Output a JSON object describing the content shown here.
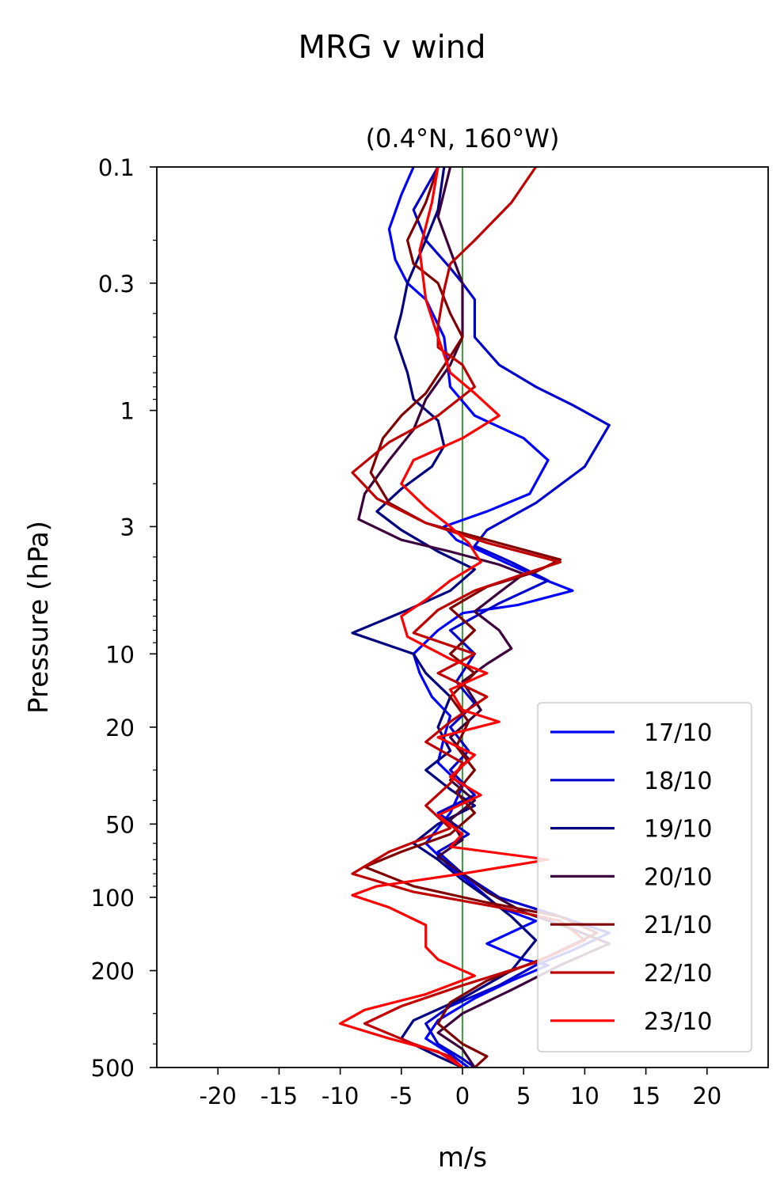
{
  "chart_data": {
    "type": "line",
    "suptitle": "MRG v wind",
    "title": "(0.4°N, 160°W)",
    "xlabel": "m/s",
    "ylabel": "Pressure (hPa)",
    "xlim": [
      -25,
      25
    ],
    "ylim": [
      500,
      0.1
    ],
    "yscale": "log",
    "xticks": [
      -20,
      -15,
      -10,
      -5,
      0,
      5,
      10,
      15,
      20
    ],
    "xtick_labels": [
      "-20",
      "-15",
      "-10",
      "-5",
      "0",
      "5",
      "10",
      "15",
      "20"
    ],
    "yticks": [
      0.1,
      0.3,
      1,
      3,
      10,
      20,
      50,
      100,
      200,
      500
    ],
    "ytick_labels": [
      "0.1",
      "0.3",
      "1",
      "3",
      "10",
      "20",
      "50",
      "100",
      "200",
      "500"
    ],
    "zero_line_color": "#008000",
    "legend_position": "lower right",
    "grid": false,
    "series": [
      {
        "name": "17/10",
        "color": "#0000ff",
        "points": [
          [
            -4,
            0.1
          ],
          [
            -5,
            0.13
          ],
          [
            -6,
            0.18
          ],
          [
            -5.5,
            0.24
          ],
          [
            -4.5,
            0.3
          ],
          [
            -3,
            0.35
          ],
          [
            -1.5,
            0.5
          ],
          [
            -1,
            0.8
          ],
          [
            1,
            1.05
          ],
          [
            5,
            1.3
          ],
          [
            7,
            1.6
          ],
          [
            5.5,
            2.2
          ],
          [
            2,
            2.6
          ],
          [
            -1.5,
            3.0
          ],
          [
            -0.5,
            3.4
          ],
          [
            3,
            4.1
          ],
          [
            6,
            4.8
          ],
          [
            9,
            5.5
          ],
          [
            4.5,
            6.3
          ],
          [
            0,
            6.8
          ],
          [
            -2,
            8
          ],
          [
            -4,
            10
          ],
          [
            -3.5,
            12
          ],
          [
            -2.5,
            15
          ],
          [
            -1,
            18
          ],
          [
            -1.5,
            22
          ],
          [
            -2,
            28
          ],
          [
            0,
            35
          ],
          [
            -1,
            45
          ],
          [
            -3,
            60
          ],
          [
            -1,
            75
          ],
          [
            1,
            90
          ],
          [
            3,
            110
          ],
          [
            6,
            125
          ],
          [
            2,
            155
          ],
          [
            5,
            180
          ],
          [
            7,
            190
          ],
          [
            4,
            220
          ],
          [
            1,
            260
          ],
          [
            -2,
            320
          ],
          [
            -3,
            380
          ],
          [
            -1,
            440
          ],
          [
            0.5,
            500
          ]
        ]
      },
      {
        "name": "18/10",
        "color": "#0000cd",
        "points": [
          [
            -2,
            0.1
          ],
          [
            -4,
            0.15
          ],
          [
            -3,
            0.2
          ],
          [
            -1,
            0.26
          ],
          [
            0,
            0.3
          ],
          [
            1,
            0.35
          ],
          [
            1,
            0.5
          ],
          [
            3,
            0.65
          ],
          [
            6,
            0.8
          ],
          [
            9,
            0.95
          ],
          [
            12,
            1.15
          ],
          [
            10,
            1.7
          ],
          [
            6,
            2.4
          ],
          [
            2,
            3.1
          ],
          [
            1,
            3.6
          ],
          [
            4,
            4.2
          ],
          [
            7,
            5
          ],
          [
            3,
            6.2
          ],
          [
            -1,
            8
          ],
          [
            1,
            10
          ],
          [
            -0.5,
            13
          ],
          [
            1,
            16
          ],
          [
            -1,
            20
          ],
          [
            0.5,
            25
          ],
          [
            -1,
            30
          ],
          [
            1,
            38
          ],
          [
            -2,
            45
          ],
          [
            0.5,
            55
          ],
          [
            -2,
            65
          ],
          [
            0,
            80
          ],
          [
            3,
            100
          ],
          [
            8,
            120
          ],
          [
            12,
            140
          ],
          [
            9,
            165
          ],
          [
            6,
            190
          ],
          [
            3,
            230
          ],
          [
            -1,
            280
          ],
          [
            -3,
            330
          ],
          [
            -2,
            400
          ],
          [
            0,
            460
          ],
          [
            1,
            500
          ]
        ]
      },
      {
        "name": "19/10",
        "color": "#000080",
        "points": [
          [
            -1.5,
            0.1
          ],
          [
            -2,
            0.15
          ],
          [
            -3,
            0.2
          ],
          [
            -4.5,
            0.3
          ],
          [
            -5,
            0.4
          ],
          [
            -5.5,
            0.5
          ],
          [
            -4.5,
            0.7
          ],
          [
            -4,
            0.9
          ],
          [
            -2,
            1.1
          ],
          [
            -1.5,
            1.4
          ],
          [
            -2.5,
            1.7
          ],
          [
            -5,
            2.1
          ],
          [
            -7,
            2.6
          ],
          [
            -5,
            3.1
          ],
          [
            -2,
            3.8
          ],
          [
            1,
            4.5
          ],
          [
            -1,
            5.5
          ],
          [
            -4.5,
            6.6
          ],
          [
            -9,
            8.2
          ],
          [
            -4,
            10
          ],
          [
            -3,
            12
          ],
          [
            -1,
            15
          ],
          [
            -2,
            20
          ],
          [
            -1,
            25
          ],
          [
            -3,
            30
          ],
          [
            -1,
            36
          ],
          [
            1,
            42
          ],
          [
            -2,
            50
          ],
          [
            -4,
            60
          ],
          [
            -2,
            70
          ],
          [
            0,
            85
          ],
          [
            2,
            100
          ],
          [
            4,
            120
          ],
          [
            6,
            150
          ],
          [
            4,
            200
          ],
          [
            0,
            260
          ],
          [
            -4,
            320
          ],
          [
            -5,
            380
          ],
          [
            -2,
            450
          ],
          [
            0,
            500
          ]
        ]
      },
      {
        "name": "20/10",
        "color": "#3c003c",
        "points": [
          [
            -1,
            0.1
          ],
          [
            -2,
            0.16
          ],
          [
            -1,
            0.22
          ],
          [
            0,
            0.3
          ],
          [
            0,
            0.5
          ],
          [
            -1,
            0.65
          ],
          [
            -3,
            0.9
          ],
          [
            -4,
            1.2
          ],
          [
            -6,
            1.6
          ],
          [
            -8,
            2.2
          ],
          [
            -8.5,
            2.8
          ],
          [
            -5,
            3.4
          ],
          [
            -1,
            3.8
          ],
          [
            3,
            4.3
          ],
          [
            5,
            4.7
          ],
          [
            3,
            5.6
          ],
          [
            1,
            6.7
          ],
          [
            3,
            8
          ],
          [
            4,
            9.5
          ],
          [
            2,
            11
          ],
          [
            0,
            13
          ],
          [
            1.5,
            17
          ],
          [
            -1,
            22
          ],
          [
            0.5,
            27
          ],
          [
            -1,
            33
          ],
          [
            1,
            40
          ],
          [
            -1,
            48
          ],
          [
            0,
            58
          ],
          [
            -2,
            68
          ],
          [
            0,
            80
          ],
          [
            2,
            95
          ],
          [
            5,
            115
          ],
          [
            9,
            135
          ],
          [
            12,
            155
          ],
          [
            8,
            190
          ],
          [
            4,
            240
          ],
          [
            0,
            300
          ],
          [
            -2,
            360
          ],
          [
            0,
            420
          ],
          [
            1,
            500
          ]
        ]
      },
      {
        "name": "21/10",
        "color": "#800000",
        "points": [
          [
            -2,
            0.1
          ],
          [
            -3,
            0.14
          ],
          [
            -4.5,
            0.2
          ],
          [
            -4,
            0.25
          ],
          [
            -2,
            0.3
          ],
          [
            -1,
            0.4
          ],
          [
            0,
            0.5
          ],
          [
            -1,
            0.6
          ],
          [
            -3,
            0.85
          ],
          [
            -5,
            1.05
          ],
          [
            -6.5,
            1.3
          ],
          [
            -7.5,
            1.8
          ],
          [
            -6,
            2.4
          ],
          [
            -3,
            2.9
          ],
          [
            2,
            3.4
          ],
          [
            8,
            4.1
          ],
          [
            6,
            4.6
          ],
          [
            2,
            5.3
          ],
          [
            -1,
            6.5
          ],
          [
            1,
            8
          ],
          [
            -1,
            10
          ],
          [
            1,
            12
          ],
          [
            -1,
            15
          ],
          [
            0.5,
            19
          ],
          [
            -0.5,
            24
          ],
          [
            1,
            30
          ],
          [
            -0.5,
            37
          ],
          [
            1,
            45
          ],
          [
            -1,
            55
          ],
          [
            -5,
            65
          ],
          [
            -8,
            75
          ],
          [
            -4,
            90
          ],
          [
            2,
            105
          ],
          [
            8,
            120
          ],
          [
            11,
            140
          ],
          [
            7,
            175
          ],
          [
            2,
            220
          ],
          [
            -1,
            270
          ],
          [
            -2,
            330
          ],
          [
            0,
            400
          ],
          [
            2,
            450
          ],
          [
            1,
            500
          ]
        ]
      },
      {
        "name": "22/10",
        "color": "#c00000",
        "points": [
          [
            6,
            0.1
          ],
          [
            4,
            0.14
          ],
          [
            1,
            0.2
          ],
          [
            -1,
            0.25
          ],
          [
            -1.5,
            0.32
          ],
          [
            -2,
            0.45
          ],
          [
            -2,
            0.55
          ],
          [
            0,
            0.65
          ],
          [
            1,
            0.8
          ],
          [
            -2,
            1.05
          ],
          [
            -6,
            1.35
          ],
          [
            -9,
            1.8
          ],
          [
            -7,
            2.3
          ],
          [
            -3,
            2.9
          ],
          [
            2,
            3.5
          ],
          [
            8,
            4.2
          ],
          [
            5,
            4.7
          ],
          [
            1,
            5.5
          ],
          [
            -2,
            6.6
          ],
          [
            -4,
            8.2
          ],
          [
            1,
            10
          ],
          [
            -2,
            12
          ],
          [
            2,
            15
          ],
          [
            -1,
            19
          ],
          [
            -3,
            23
          ],
          [
            0,
            28
          ],
          [
            -1,
            34
          ],
          [
            -3,
            42
          ],
          [
            -1,
            52
          ],
          [
            -6,
            65
          ],
          [
            -9,
            80
          ],
          [
            -4,
            95
          ],
          [
            3,
            110
          ],
          [
            8,
            125
          ],
          [
            10,
            150
          ],
          [
            6,
            185
          ],
          [
            0,
            230
          ],
          [
            -5,
            280
          ],
          [
            -8,
            330
          ],
          [
            -4,
            400
          ],
          [
            -1,
            450
          ],
          [
            0,
            500
          ]
        ]
      },
      {
        "name": "23/10",
        "color": "#ff0000",
        "points": [
          [
            -2,
            0.1
          ],
          [
            -2.5,
            0.14
          ],
          [
            -3.5,
            0.22
          ],
          [
            -3,
            0.35
          ],
          [
            -2,
            0.5
          ],
          [
            -1,
            0.7
          ],
          [
            1,
            0.85
          ],
          [
            3,
            1.05
          ],
          [
            0,
            1.3
          ],
          [
            -4,
            1.6
          ],
          [
            -5,
            2.0
          ],
          [
            -3,
            2.5
          ],
          [
            -1,
            3.0
          ],
          [
            0.5,
            3.5
          ],
          [
            1.5,
            4.2
          ],
          [
            -1,
            5
          ],
          [
            -3,
            6
          ],
          [
            -5,
            7
          ],
          [
            -4.5,
            8.5
          ],
          [
            -1,
            10.5
          ],
          [
            2,
            12
          ],
          [
            -1,
            14
          ],
          [
            0,
            17
          ],
          [
            3,
            19
          ],
          [
            -2,
            22
          ],
          [
            1,
            26
          ],
          [
            -1,
            32
          ],
          [
            1.5,
            38
          ],
          [
            -2,
            46
          ],
          [
            0,
            55
          ],
          [
            -1,
            62
          ],
          [
            7,
            70
          ],
          [
            0,
            80
          ],
          [
            -7,
            90
          ],
          [
            -9,
            98
          ],
          [
            -6,
            110
          ],
          [
            -3,
            130
          ],
          [
            -3,
            160
          ],
          [
            -2,
            180
          ],
          [
            1,
            210
          ],
          [
            -3,
            250
          ],
          [
            -8,
            290
          ],
          [
            -10,
            330
          ],
          [
            -6,
            380
          ],
          [
            -2,
            430
          ],
          [
            0,
            500
          ]
        ]
      }
    ]
  }
}
